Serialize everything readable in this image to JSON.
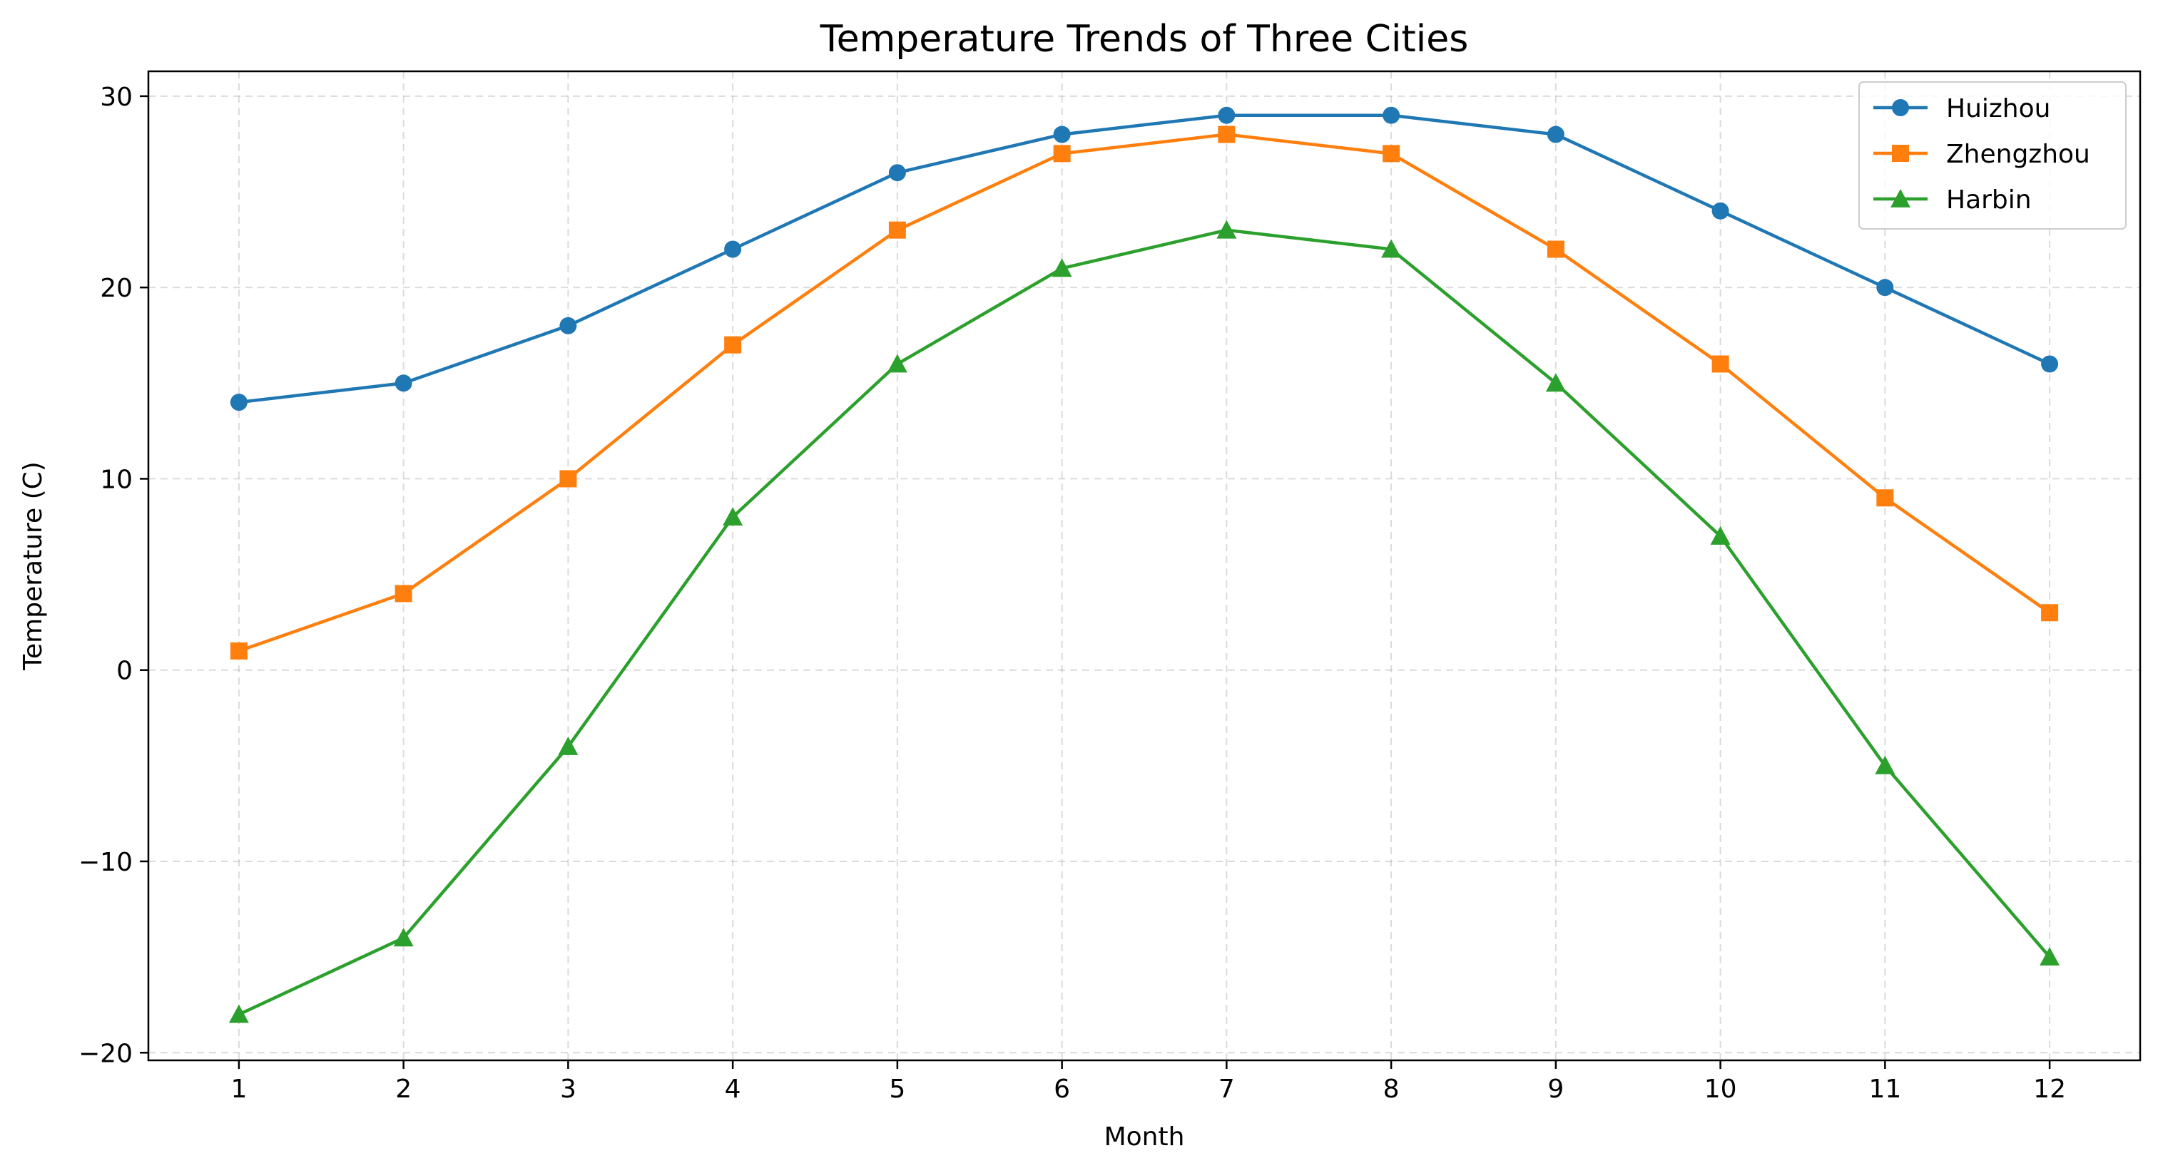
{
  "chart_data": {
    "type": "line",
    "title": "Temperature Trends of Three Cities",
    "xlabel": "Month",
    "ylabel": "Temperature (C)",
    "x": [
      1,
      2,
      3,
      4,
      5,
      6,
      7,
      8,
      9,
      10,
      11,
      12
    ],
    "xlim": [
      0.45,
      12.55
    ],
    "ylim": [
      -20.4,
      31.3
    ],
    "yticks": [
      -20,
      -10,
      0,
      10,
      20,
      30
    ],
    "grid": true,
    "legend_position": "top-right",
    "series": [
      {
        "name": "Huizhou",
        "color": "#1f77b4",
        "marker": "circle",
        "values": [
          14,
          15,
          18,
          22,
          26,
          28,
          29,
          29,
          28,
          24,
          20,
          16
        ]
      },
      {
        "name": "Zhengzhou",
        "color": "#ff7f0e",
        "marker": "square",
        "values": [
          1,
          4,
          10,
          17,
          23,
          27,
          28,
          27,
          22,
          16,
          9,
          3
        ]
      },
      {
        "name": "Harbin",
        "color": "#2ca02c",
        "marker": "triangle",
        "values": [
          -18,
          -14,
          -4,
          8,
          16,
          21,
          23,
          22,
          15,
          7,
          -5,
          -15
        ]
      }
    ]
  }
}
